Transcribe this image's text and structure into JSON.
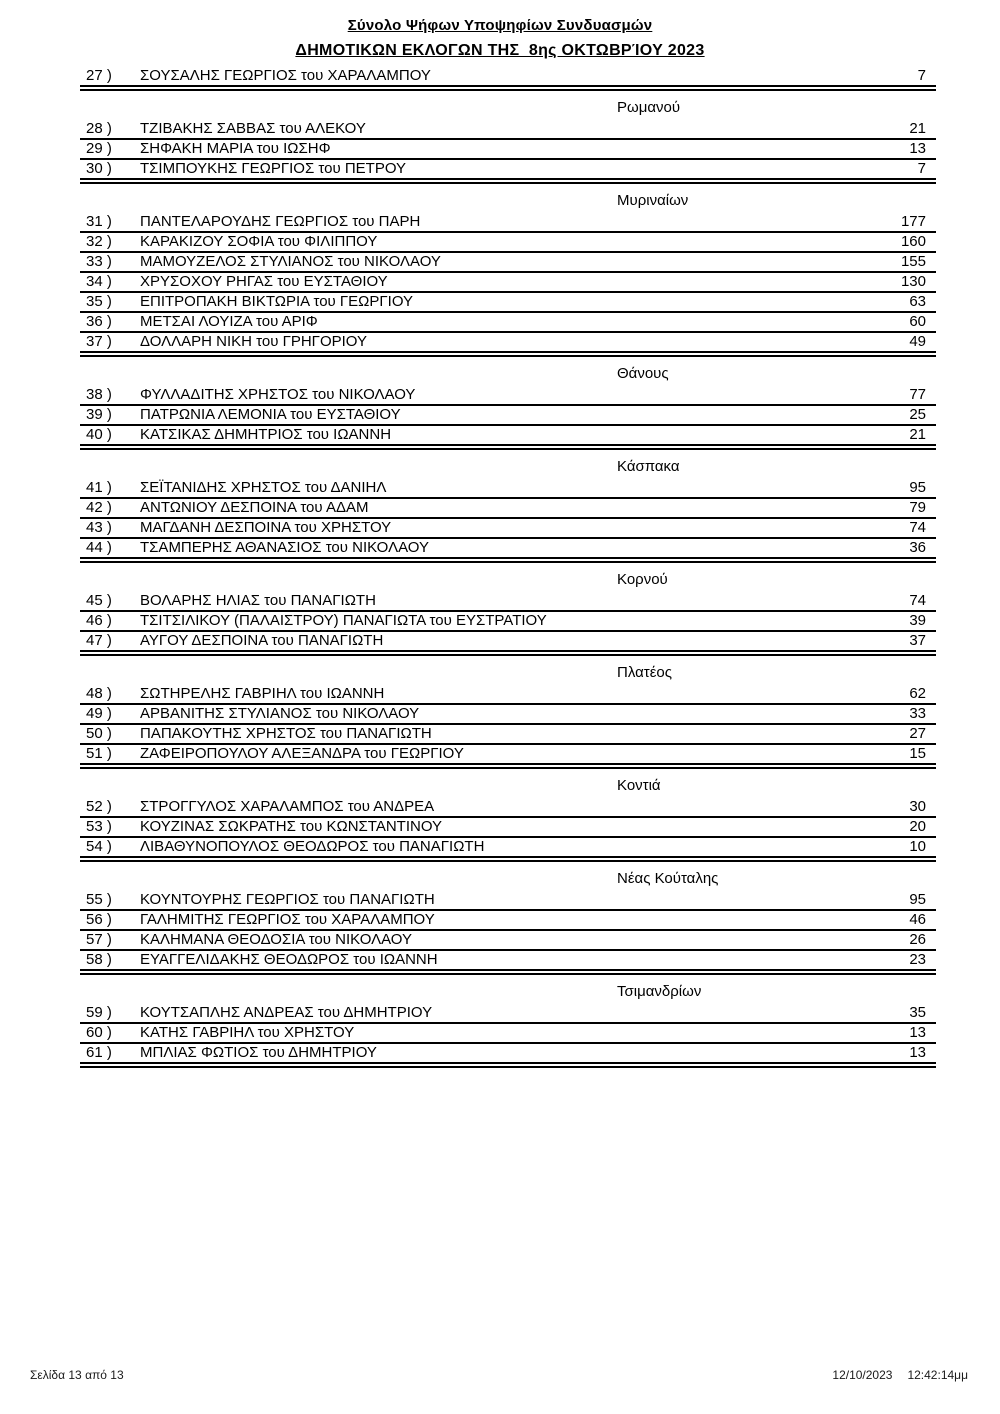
{
  "header": {
    "title_line1": "Σύνολο Ψήφων Υποψηφίων Συνδυασμών",
    "title_line2": "ΔΗΜΟΤΙΚΩΝ ΕΚΛΟΓΩΝ ΤΗΣ  8ης ΟΚΤΩΒΡΊΟΥ 2023"
  },
  "groups": [
    {
      "label": "",
      "rows": [
        {
          "num": "27 )",
          "name": "ΣΟΥΣΑΛΗΣ ΓΕΩΡΓΙΟΣ του ΧΑΡΑΛΑΜΠΟΥ",
          "votes": "7"
        }
      ]
    },
    {
      "label": "Ρωμανού",
      "rows": [
        {
          "num": "28 )",
          "name": "ΤΖΙΒΑΚΗΣ ΣΑΒΒΑΣ του ΑΛΕΚΟΥ",
          "votes": "21"
        },
        {
          "num": "29 )",
          "name": "ΣΗΦΑΚΗ ΜΑΡΙΑ του ΙΩΣΗΦ",
          "votes": "13"
        },
        {
          "num": "30 )",
          "name": "ΤΣΙΜΠΟΥΚΗΣ ΓΕΩΡΓΙΟΣ του ΠΕΤΡΟΥ",
          "votes": "7"
        }
      ]
    },
    {
      "label": "Μυριναίων",
      "rows": [
        {
          "num": "31 )",
          "name": "ΠΑΝΤΕΛΑΡΟΥΔΗΣ ΓΕΩΡΓΙΟΣ του ΠΑΡΗ",
          "votes": "177"
        },
        {
          "num": "32 )",
          "name": "ΚΑΡΑΚΙΖΟΥ ΣΟΦΙΑ του ΦΙΛΙΠΠΟΥ",
          "votes": "160"
        },
        {
          "num": "33 )",
          "name": "ΜΑΜΟΥΖΕΛΟΣ ΣΤΥΛΙΑΝΟΣ του ΝΙΚΟΛΑΟΥ",
          "votes": "155"
        },
        {
          "num": "34 )",
          "name": "ΧΡΥΣΟΧΟΥ ΡΗΓΑΣ του ΕΥΣΤΑΘΙΟΥ",
          "votes": "130"
        },
        {
          "num": "35 )",
          "name": "ΕΠΙΤΡΟΠΑΚΗ ΒΙΚΤΩΡΙΑ του ΓΕΩΡΓΙΟΥ",
          "votes": "63"
        },
        {
          "num": "36 )",
          "name": "ΜΕΤΣΑΙ ΛΟΥΙΖΑ του ΑΡΙΦ",
          "votes": "60"
        },
        {
          "num": "37 )",
          "name": "ΔΟΛΛΑΡΗ ΝΙΚΗ του ΓΡΗΓΟΡΙΟΥ",
          "votes": "49"
        }
      ]
    },
    {
      "label": "Θάνους",
      "rows": [
        {
          "num": "38 )",
          "name": "ΦΥΛΛΑΔΙΤΗΣ ΧΡΗΣΤΟΣ του ΝΙΚΟΛΑΟΥ",
          "votes": "77"
        },
        {
          "num": "39 )",
          "name": "ΠΑΤΡΩΝΙΑ ΛΕΜΟΝΙΑ του ΕΥΣΤΑΘΙΟΥ",
          "votes": "25"
        },
        {
          "num": "40 )",
          "name": "ΚΑΤΣΙΚΑΣ ΔΗΜΗΤΡΙΟΣ του ΙΩΑΝΝΗ",
          "votes": "21"
        }
      ]
    },
    {
      "label": "Κάσπακα",
      "rows": [
        {
          "num": "41 )",
          "name": "ΣΕΪΤΑΝΙΔΗΣ ΧΡΗΣΤΟΣ του ΔΑΝΙΗΛ",
          "votes": "95"
        },
        {
          "num": "42 )",
          "name": "ΑΝΤΩΝΙΟΥ ΔΕΣΠΟΙΝΑ του ΑΔΑΜ",
          "votes": "79"
        },
        {
          "num": "43 )",
          "name": "ΜΑΓΔΑΝΗ ΔΕΣΠΟΙΝΑ του ΧΡΗΣΤΟΥ",
          "votes": "74"
        },
        {
          "num": "44 )",
          "name": "ΤΣΑΜΠΕΡΗΣ ΑΘΑΝΑΣΙΟΣ του ΝΙΚΟΛΑΟΥ",
          "votes": "36"
        }
      ]
    },
    {
      "label": "Κορνού",
      "rows": [
        {
          "num": "45 )",
          "name": "ΒΟΛΑΡΗΣ ΗΛΙΑΣ του ΠΑΝΑΓΙΩΤΗ",
          "votes": "74"
        },
        {
          "num": "46 )",
          "name": "ΤΣΙΤΣΙΛΙΚΟΥ (ΠΑΛΑΙΣΤΡΟΥ) ΠΑΝΑΓΙΩΤΑ του ΕΥΣΤΡΑΤΙΟΥ",
          "votes": "39"
        },
        {
          "num": "47 )",
          "name": "ΑΥΓΟΥ ΔΕΣΠΟΙΝΑ του ΠΑΝΑΓΙΩΤΗ",
          "votes": "37"
        }
      ]
    },
    {
      "label": "Πλατέος",
      "rows": [
        {
          "num": "48 )",
          "name": "ΣΩΤΗΡΕΛΗΣ ΓΑΒΡΙΗΛ του ΙΩΑΝΝΗ",
          "votes": "62"
        },
        {
          "num": "49 )",
          "name": "ΑΡΒΑΝΙΤΗΣ ΣΤΥΛΙΑΝΟΣ του ΝΙΚΟΛΑΟΥ",
          "votes": "33"
        },
        {
          "num": "50 )",
          "name": "ΠΑΠΑΚΟΥΤΗΣ ΧΡΗΣΤΟΣ του ΠΑΝΑΓΙΩΤΗ",
          "votes": "27"
        },
        {
          "num": "51 )",
          "name": "ΖΑΦΕΙΡΟΠΟΥΛΟΥ ΑΛΕΞΑΝΔΡΑ του ΓΕΩΡΓΙΟΥ",
          "votes": "15"
        }
      ]
    },
    {
      "label": "Κοντιά",
      "rows": [
        {
          "num": "52 )",
          "name": "ΣΤΡΟΓΓΥΛΟΣ ΧΑΡΑΛΑΜΠΟΣ του ΑΝΔΡΕΑ",
          "votes": "30"
        },
        {
          "num": "53 )",
          "name": "ΚΟΥΖΙΝΑΣ ΣΩΚΡΑΤΗΣ του ΚΩΝΣΤΑΝΤΙΝΟΥ",
          "votes": "20"
        },
        {
          "num": "54 )",
          "name": "ΛΙΒΑΘΥΝΟΠΟΥΛΟΣ ΘΕΟΔΩΡΟΣ του ΠΑΝΑΓΙΩΤΗ",
          "votes": "10"
        }
      ]
    },
    {
      "label": "Νέας Κούταλης",
      "rows": [
        {
          "num": "55 )",
          "name": "ΚΟΥΝΤΟΥΡΗΣ ΓΕΩΡΓΙΟΣ του ΠΑΝΑΓΙΩΤΗ",
          "votes": "95"
        },
        {
          "num": "56 )",
          "name": "ΓΑΛΗΜΙΤΗΣ ΓΕΩΡΓΙΟΣ του ΧΑΡΑΛΑΜΠΟΥ",
          "votes": "46"
        },
        {
          "num": "57 )",
          "name": "ΚΑΛΗΜΑΝΑ ΘΕΟΔΟΣΙΑ του ΝΙΚΟΛΑΟΥ",
          "votes": "26"
        },
        {
          "num": "58 )",
          "name": "ΕΥΑΓΓΕΛΙΔΑΚΗΣ ΘΕΟΔΩΡΟΣ του ΙΩΑΝΝΗ",
          "votes": "23"
        }
      ]
    },
    {
      "label": "Τσιμανδρίων",
      "rows": [
        {
          "num": "59 )",
          "name": "ΚΟΥΤΣΑΠΛΗΣ ΑΝΔΡΕΑΣ του ΔΗΜΗΤΡΙΟΥ",
          "votes": "35"
        },
        {
          "num": "60 )",
          "name": "ΚΑΤΗΣ ΓΑΒΡΙΗΛ του ΧΡΗΣΤΟΥ",
          "votes": "13"
        },
        {
          "num": "61 )",
          "name": "ΜΠΛΙΑΣ ΦΩΤΙΟΣ του ΔΗΜΗΤΡΙΟΥ",
          "votes": "13"
        }
      ]
    }
  ],
  "footer": {
    "page_info": "Σελίδα 13 από 13",
    "date": "12/10/2023",
    "time": "12:42:14μμ"
  }
}
